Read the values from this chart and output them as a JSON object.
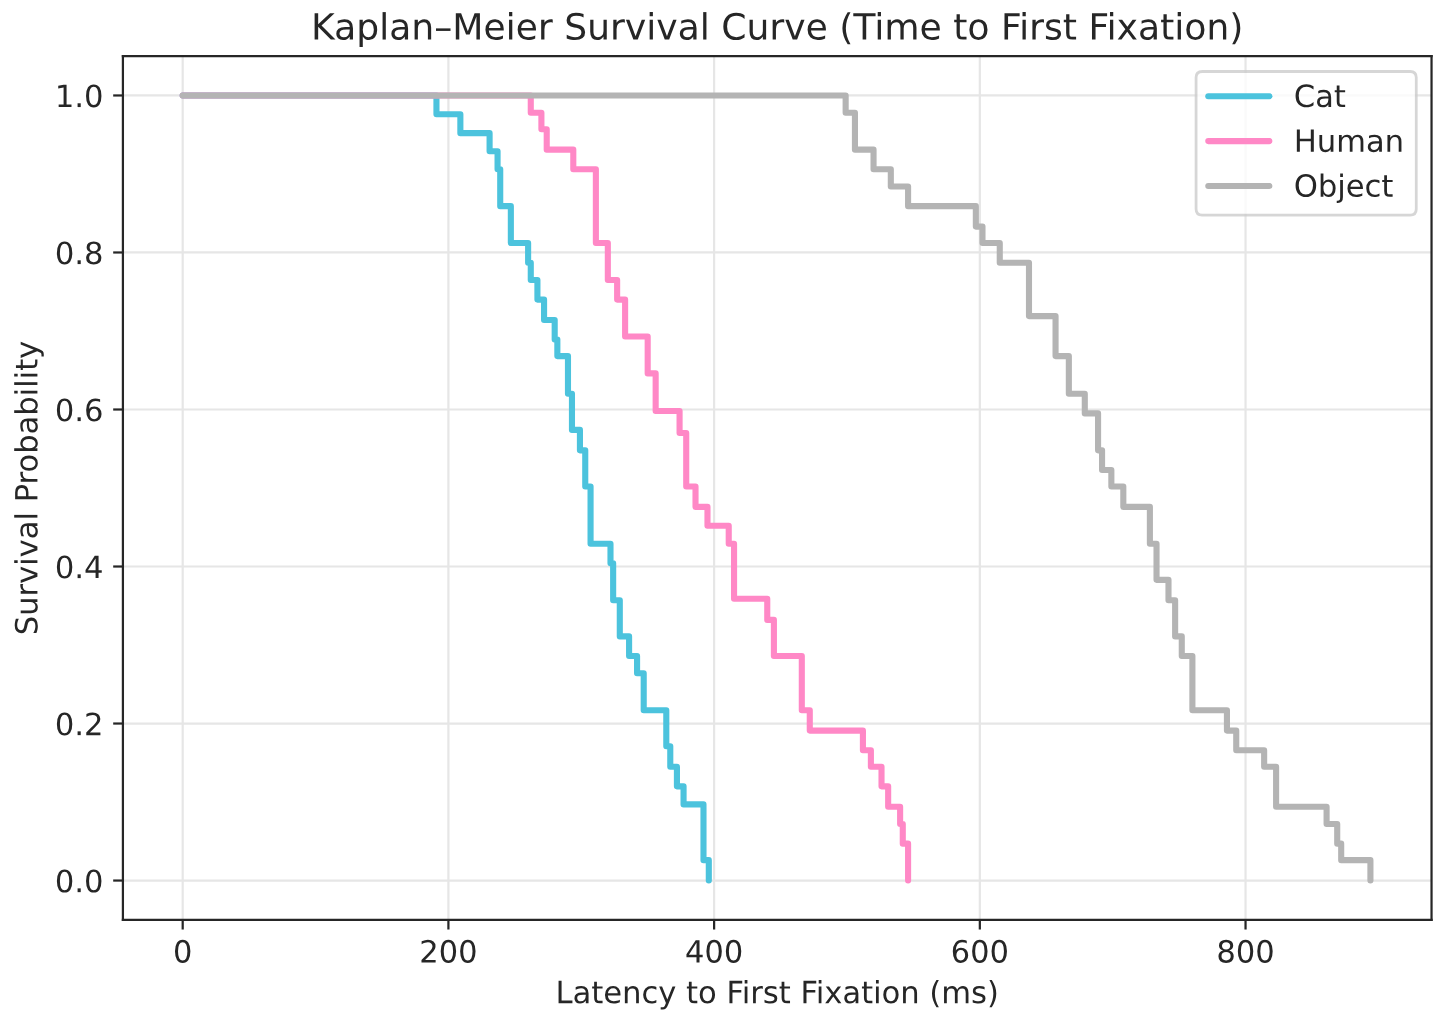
{
  "chart_data": {
    "type": "step",
    "title": "Kaplan–Meier Survival Curve (Time to First Fixation)",
    "xlabel": "Latency to First Fixation (ms)",
    "ylabel": "Survival Probability",
    "xlim": [
      -45,
      940
    ],
    "ylim": [
      -0.05,
      1.05
    ],
    "xticks": [
      0,
      200,
      400,
      600,
      800
    ],
    "yticks": [
      {
        "value": 0,
        "label": "0.0"
      },
      0.2,
      0.4,
      0.6,
      0.8,
      {
        "value": 1,
        "label": "1.0"
      }
    ],
    "grid": true,
    "legend": "top right",
    "series": [
      {
        "name": "Cat",
        "color": "#4cc3dd",
        "x": [
          0,
          191,
          209,
          231,
          237,
          239,
          247,
          260,
          262,
          267,
          272,
          280,
          282,
          290,
          293,
          299,
          303,
          307,
          322,
          324,
          329,
          336,
          342,
          347,
          364,
          367,
          372,
          377,
          392,
          396
        ],
        "values": [
          1.0,
          0.976,
          0.952,
          0.929,
          0.906,
          0.859,
          0.812,
          0.787,
          0.765,
          0.74,
          0.714,
          0.689,
          0.668,
          0.62,
          0.574,
          0.548,
          0.502,
          0.429,
          0.404,
          0.357,
          0.311,
          0.286,
          0.264,
          0.217,
          0.171,
          0.145,
          0.12,
          0.097,
          0.026,
          0.0
        ]
      },
      {
        "name": "Human",
        "color": "#ff88c6",
        "x": [
          0,
          262,
          270,
          274,
          294,
          311,
          320,
          327,
          333,
          350,
          356,
          374,
          379,
          386,
          395,
          411,
          415,
          440,
          445,
          466,
          472,
          512,
          518,
          526,
          531,
          540,
          542,
          546
        ],
        "values": [
          1.0,
          0.978,
          0.957,
          0.931,
          0.906,
          0.812,
          0.765,
          0.74,
          0.693,
          0.646,
          0.598,
          0.57,
          0.502,
          0.476,
          0.452,
          0.429,
          0.359,
          0.332,
          0.286,
          0.217,
          0.191,
          0.166,
          0.145,
          0.12,
          0.094,
          0.072,
          0.047,
          0.0
        ]
      },
      {
        "name": "Object",
        "color": "#b4b4b4",
        "x": [
          0,
          499,
          506,
          520,
          533,
          546,
          597,
          602,
          615,
          637,
          657,
          667,
          679,
          689,
          692,
          699,
          708,
          728,
          733,
          742,
          747,
          752,
          760,
          786,
          793,
          814,
          823,
          861,
          869,
          872,
          894
        ],
        "values": [
          1.0,
          0.978,
          0.931,
          0.906,
          0.884,
          0.859,
          0.833,
          0.812,
          0.787,
          0.719,
          0.668,
          0.62,
          0.595,
          0.548,
          0.523,
          0.502,
          0.476,
          0.429,
          0.383,
          0.357,
          0.311,
          0.286,
          0.217,
          0.191,
          0.166,
          0.145,
          0.094,
          0.072,
          0.047,
          0.026,
          0.0
        ]
      }
    ]
  }
}
